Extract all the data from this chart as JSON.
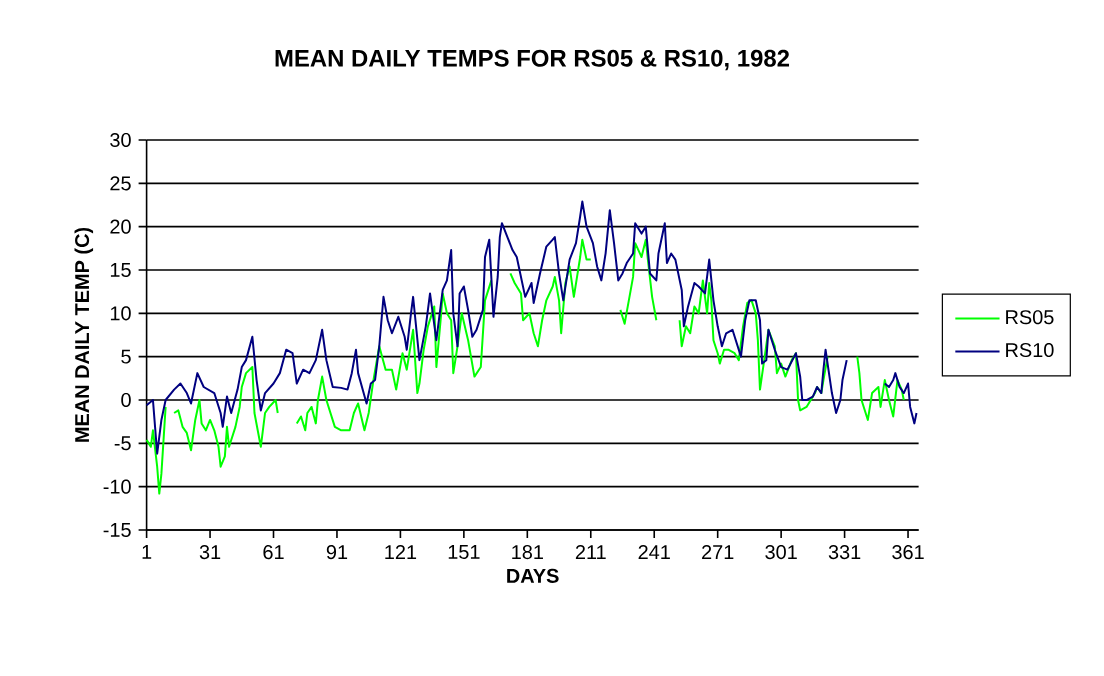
{
  "chart_data": {
    "type": "line",
    "title": "MEAN DAILY TEMPS FOR RS05 & RS10, 1982",
    "xlabel": "DAYS",
    "ylabel": "MEAN DAILY TEMP (C)",
    "xlim": [
      1,
      366
    ],
    "xticks": [
      1,
      31,
      61,
      91,
      121,
      151,
      181,
      211,
      241,
      271,
      301,
      331,
      361
    ],
    "ylim": [
      -15,
      30
    ],
    "yticks": [
      -15,
      -10,
      -5,
      0,
      5,
      10,
      15,
      20,
      25,
      30
    ],
    "grid": "y",
    "legend": "right",
    "marker": "none",
    "line_style": "solid",
    "series": [
      {
        "name": "RS05",
        "color": "#00ff00",
        "x": [
          1,
          3,
          4,
          6,
          7,
          8,
          10,
          12,
          14,
          16,
          18,
          20,
          22,
          24,
          26,
          27,
          29,
          31,
          33,
          35,
          36,
          38,
          39,
          40,
          43,
          45,
          46,
          48,
          51,
          52,
          55,
          57,
          59,
          62,
          63,
          68,
          72,
          74,
          76,
          77,
          79,
          81,
          82,
          84,
          86,
          90,
          93,
          97,
          99,
          101,
          104,
          106,
          108,
          111,
          114,
          117,
          119,
          122,
          124,
          127,
          129,
          130,
          132,
          134,
          137,
          138,
          140,
          141,
          143,
          145,
          146,
          148,
          150,
          153,
          156,
          159,
          161,
          164,
          168,
          173,
          175,
          178,
          179,
          182,
          184,
          186,
          188,
          190,
          193,
          194,
          196,
          197,
          199,
          201,
          203,
          206,
          207,
          209,
          211,
          218,
          225,
          227,
          229,
          231,
          232,
          235,
          237,
          238,
          240,
          242,
          248,
          253,
          254,
          256,
          258,
          260,
          262,
          264,
          266,
          267,
          268,
          269,
          271,
          272,
          274,
          276,
          279,
          281,
          283,
          285,
          287,
          289,
          290,
          291,
          293,
          295,
          298,
          299,
          301,
          303,
          306,
          308,
          309,
          310,
          313,
          315,
          317,
          318,
          320,
          321,
          323,
          330,
          337,
          338,
          339,
          342,
          344,
          347,
          348,
          350,
          352,
          354,
          356,
          358,
          359
        ],
        "values": [
          -4.6,
          -5.4,
          -3.5,
          -7.7,
          -10.8,
          -8.5,
          -0.8,
          null,
          -1.5,
          -1.2,
          -3.1,
          -3.8,
          -5.8,
          -2.3,
          0,
          -2.7,
          -3.5,
          -2.3,
          -3.5,
          -5.4,
          -7.7,
          -6.5,
          -3.1,
          -5.4,
          -3.1,
          -0.8,
          1.5,
          3.1,
          3.8,
          -1.5,
          -5.4,
          -1.5,
          -0.8,
          0,
          -1.5,
          null,
          -2.7,
          -1.9,
          -3.5,
          -1.5,
          -0.8,
          -2.7,
          0,
          2.7,
          0,
          -3.1,
          -3.5,
          -3.5,
          -1.5,
          -0.4,
          -3.5,
          -1.5,
          1.9,
          6.2,
          3.5,
          3.5,
          1.2,
          5.4,
          3.5,
          8.1,
          0.8,
          1.9,
          5.8,
          8.5,
          10.8,
          3.8,
          9.2,
          12.3,
          10,
          9.2,
          3.1,
          6.2,
          10,
          6.9,
          2.7,
          3.8,
          11.5,
          13.8,
          null,
          14.6,
          13.5,
          12.3,
          9.2,
          10,
          7.7,
          6.2,
          9.2,
          11.5,
          13.1,
          14.2,
          11.5,
          7.7,
          13.5,
          15.4,
          11.9,
          16.5,
          18.5,
          16.2,
          16.2,
          null,
          10.4,
          8.8,
          11.5,
          14.2,
          18.1,
          16.5,
          18.5,
          16.2,
          11.9,
          9.2,
          null,
          9.2,
          6.2,
          8.5,
          7.7,
          10.8,
          10,
          13.8,
          10,
          13.5,
          11.5,
          6.9,
          5.4,
          4.2,
          5.8,
          5.8,
          5.4,
          4.6,
          8.5,
          11.2,
          11.5,
          10,
          6.9,
          1.2,
          4.6,
          8.1,
          6.2,
          3.1,
          4.2,
          2.7,
          4.6,
          5.4,
          0,
          -1.2,
          -0.8,
          0,
          0.8,
          1.5,
          0.8,
          2.3,
          5,
          null,
          5,
          3.1,
          0,
          -2.3,
          0.8,
          1.5,
          -0.8,
          2.3,
          0,
          -1.9,
          2.3,
          1.2,
          0
        ]
      },
      {
        "name": "RS10",
        "color": "#000080",
        "x": [
          1,
          4,
          5,
          6,
          8,
          10,
          14,
          17,
          20,
          22,
          25,
          28,
          33,
          36,
          37,
          39,
          41,
          44,
          46,
          48,
          51,
          53,
          55,
          57,
          61,
          64,
          67,
          70,
          72,
          75,
          78,
          81,
          84,
          86,
          89,
          93,
          96,
          98,
          100,
          101,
          105,
          107,
          109,
          111,
          113,
          115,
          117,
          120,
          123,
          124,
          126,
          127,
          130,
          133,
          135,
          138,
          141,
          143,
          145,
          146,
          148,
          149,
          151,
          153,
          155,
          157,
          160,
          161,
          163,
          165,
          167,
          168,
          169,
          174,
          176,
          178,
          180,
          183,
          184,
          187,
          190,
          193,
          194,
          196,
          198,
          201,
          204,
          206,
          207,
          209,
          212,
          214,
          216,
          218,
          220,
          222,
          224,
          226,
          228,
          231,
          232,
          235,
          237,
          239,
          242,
          243,
          246,
          247,
          249,
          251,
          254,
          255,
          257,
          260,
          262,
          265,
          267,
          269,
          271,
          273,
          275,
          278,
          282,
          284,
          286,
          289,
          291,
          292,
          294,
          295,
          298,
          301,
          304,
          308,
          310,
          311,
          313,
          316,
          318,
          320,
          321,
          322,
          325,
          327,
          329,
          330,
          332,
          340,
          350,
          352,
          354,
          355,
          357,
          359,
          361,
          362,
          364,
          365
        ],
        "values": [
          -0.6,
          0,
          -3.1,
          -6.2,
          -2.3,
          0,
          1.2,
          1.9,
          0.8,
          -0.4,
          3.1,
          1.5,
          0.8,
          -1.5,
          -3.1,
          0.4,
          -1.5,
          1.2,
          3.8,
          4.6,
          7.3,
          2.3,
          -1.2,
          0.8,
          1.9,
          3.1,
          5.8,
          5.4,
          1.9,
          3.5,
          3.1,
          4.6,
          8.1,
          4.6,
          1.5,
          1.4,
          1.2,
          3.1,
          5.8,
          3.1,
          -0.4,
          1.9,
          2.3,
          6.2,
          11.9,
          9.2,
          7.7,
          9.6,
          7.3,
          5.8,
          10,
          11.9,
          4.6,
          8.5,
          12.3,
          6.9,
          12.7,
          13.8,
          17.3,
          10,
          6.2,
          12.3,
          13.1,
          10.4,
          7.3,
          8.1,
          10.4,
          16.5,
          18.5,
          9.6,
          14.2,
          18.8,
          20.4,
          17.3,
          16.5,
          14.2,
          11.9,
          13.5,
          11.2,
          14.6,
          17.7,
          18.5,
          18.8,
          14.6,
          11.5,
          16.2,
          18.1,
          21.2,
          22.9,
          20,
          18.1,
          15.4,
          13.8,
          16.9,
          21.9,
          18.1,
          13.8,
          14.6,
          15.8,
          16.9,
          20.4,
          19.2,
          20,
          14.6,
          13.8,
          16.9,
          20.4,
          15.8,
          16.9,
          16.2,
          12.7,
          8.5,
          10.8,
          13.5,
          13.1,
          12.3,
          16.2,
          11.5,
          8.5,
          6.2,
          7.7,
          8.1,
          5,
          9.2,
          11.5,
          11.5,
          9.2,
          4.2,
          4.6,
          8.1,
          5.8,
          3.8,
          3.5,
          5.4,
          2.7,
          0,
          0,
          0.4,
          1.5,
          0.8,
          3.5,
          5.8,
          0.8,
          -1.5,
          0,
          2.3,
          4.6,
          null,
          1.9,
          1.5,
          2.3,
          3.1,
          1.5,
          0.8,
          1.9,
          -0.8,
          -2.7,
          -1.5
        ]
      }
    ]
  }
}
